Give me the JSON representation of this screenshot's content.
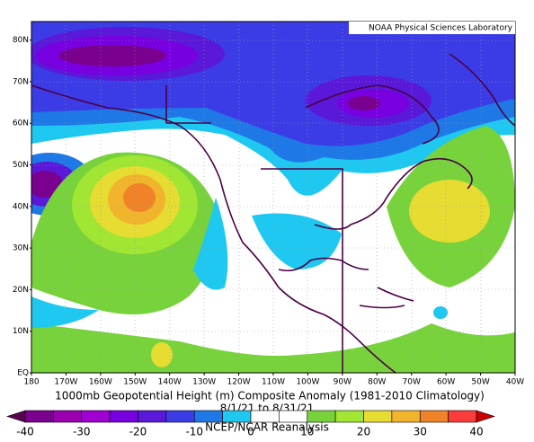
{
  "map": {
    "credit": "NOAA Physical Sciences Laboratory",
    "lat_labels": [
      "EQ",
      "10N",
      "20N",
      "30N",
      "40N",
      "50N",
      "60N",
      "70N",
      "80N"
    ],
    "lon_labels": [
      "180",
      "170W",
      "160W",
      "150W",
      "140W",
      "130W",
      "120W",
      "110W",
      "100W",
      "90W",
      "80W",
      "70W",
      "60W",
      "50W",
      "40W"
    ],
    "title": "1000mb Geopotential Height (m) Composite Anomaly (1981-2010 Climatology)",
    "dates": "8/1/21  to 8/31/21",
    "source": "NCEP/NCAR Reanalysis",
    "colorbar": {
      "labels": [
        -40,
        -30,
        -20,
        -10,
        0,
        10,
        20,
        30,
        40
      ],
      "colors": [
        "#5a0050",
        "#7a0090",
        "#9a00b0",
        "#a000d0",
        "#7800e0",
        "#5a18d8",
        "#3c3ce6",
        "#1e78e6",
        "#1ec8f0",
        "#ffffff",
        "#ffffff",
        "#78d23c",
        "#a0e632",
        "#e6dc32",
        "#f0b42d",
        "#f08228",
        "#fa3c3c",
        "#c80000"
      ]
    }
  }
}
